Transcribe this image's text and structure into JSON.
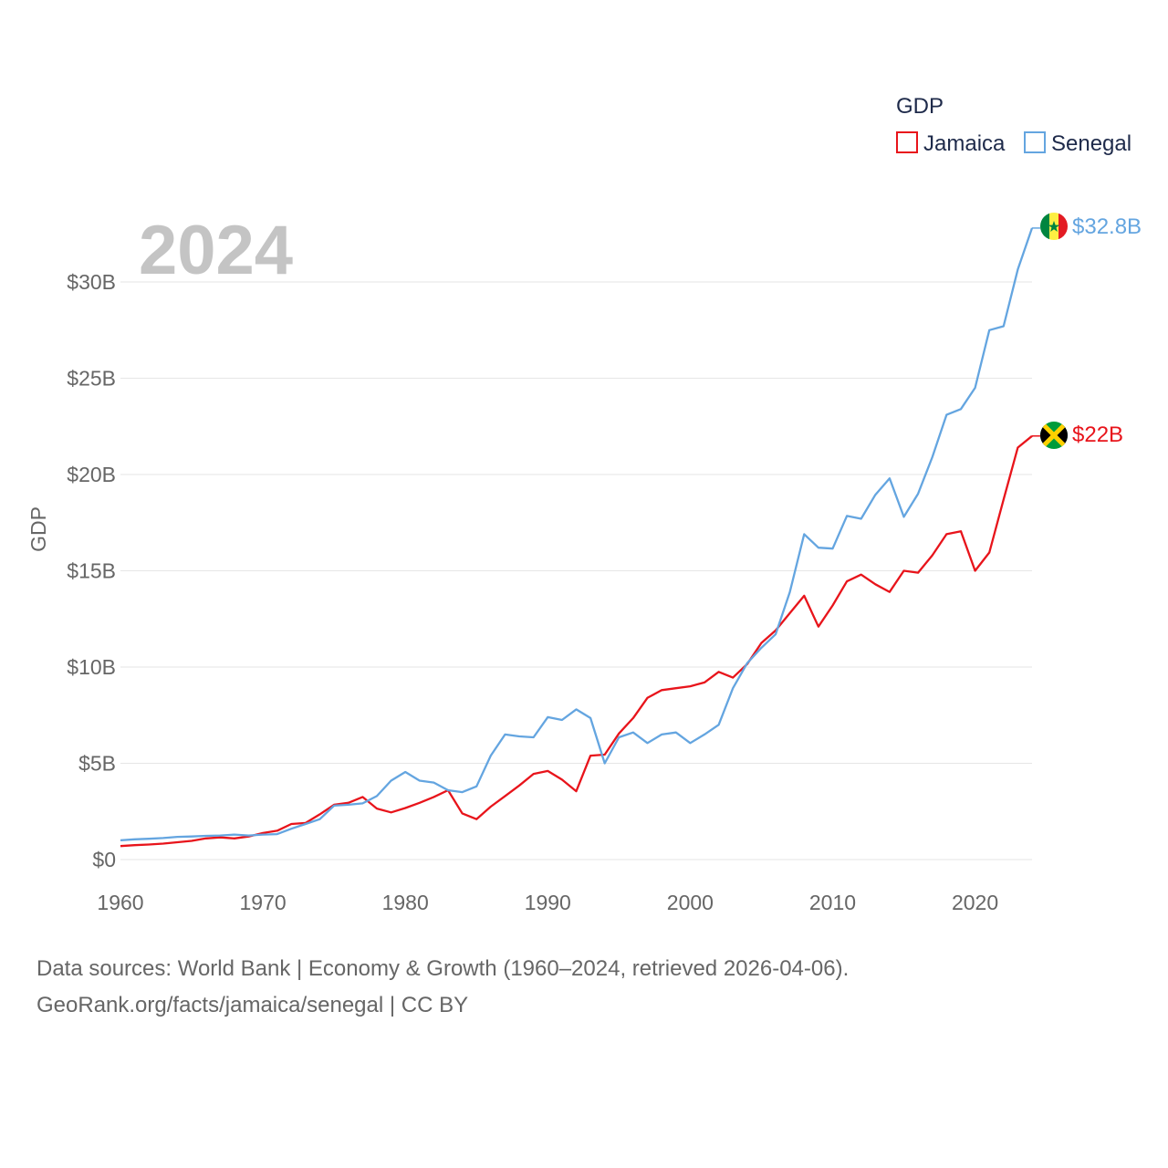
{
  "chart_data": {
    "type": "line",
    "year_label": "2024",
    "ylabel": "GDP",
    "legend_title": "GDP",
    "legend_position": "top-right",
    "xlim": [
      1960,
      2024
    ],
    "ylim": [
      0,
      33
    ],
    "x_ticks": [
      1960,
      1970,
      1980,
      1990,
      2000,
      2010,
      2020
    ],
    "x_tick_labels": [
      "1960",
      "1970",
      "1980",
      "1990",
      "2000",
      "2010",
      "2020"
    ],
    "y_ticks": [
      0,
      5,
      10,
      15,
      20,
      25,
      30
    ],
    "y_tick_labels": [
      "$0",
      "$5B",
      "$10B",
      "$15B",
      "$20B",
      "$25B",
      "$30B"
    ],
    "grid": true,
    "series": [
      {
        "name": "Jamaica",
        "color": "#e8141b",
        "end_label": "$22B",
        "flag_icon": "jamaica-flag-icon",
        "x": [
          1960,
          1961,
          1962,
          1963,
          1964,
          1965,
          1966,
          1967,
          1968,
          1969,
          1970,
          1971,
          1972,
          1973,
          1974,
          1975,
          1976,
          1977,
          1978,
          1979,
          1980,
          1981,
          1982,
          1983,
          1984,
          1985,
          1986,
          1987,
          1988,
          1989,
          1990,
          1991,
          1992,
          1993,
          1994,
          1995,
          1996,
          1997,
          1998,
          1999,
          2000,
          2001,
          2002,
          2003,
          2004,
          2005,
          2006,
          2007,
          2008,
          2009,
          2010,
          2011,
          2012,
          2013,
          2014,
          2015,
          2016,
          2017,
          2018,
          2019,
          2020,
          2021,
          2022,
          2023,
          2024
        ],
        "values": [
          0.7,
          0.75,
          0.78,
          0.83,
          0.9,
          0.97,
          1.1,
          1.15,
          1.1,
          1.2,
          1.38,
          1.5,
          1.85,
          1.9,
          2.35,
          2.85,
          2.95,
          3.25,
          2.65,
          2.45,
          2.68,
          2.95,
          3.25,
          3.6,
          2.4,
          2.1,
          2.75,
          3.3,
          3.85,
          4.45,
          4.6,
          4.15,
          3.55,
          5.4,
          5.45,
          6.55,
          7.35,
          8.4,
          8.8,
          8.9,
          9.0,
          9.2,
          9.75,
          9.45,
          10.15,
          11.25,
          11.9,
          12.8,
          13.7,
          12.1,
          13.2,
          14.45,
          14.8,
          14.3,
          13.9,
          15.0,
          14.9,
          15.8,
          16.9,
          17.05,
          15.0,
          15.95,
          18.7,
          21.4,
          22.0
        ]
      },
      {
        "name": "Senegal",
        "color": "#64a5e0",
        "end_label": "$32.8B",
        "flag_icon": "senegal-flag-icon",
        "x": [
          1960,
          1961,
          1962,
          1963,
          1964,
          1965,
          1966,
          1967,
          1968,
          1969,
          1970,
          1971,
          1972,
          1973,
          1974,
          1975,
          1976,
          1977,
          1978,
          1979,
          1980,
          1981,
          1982,
          1983,
          1984,
          1985,
          1986,
          1987,
          1988,
          1989,
          1990,
          1991,
          1992,
          1993,
          1994,
          1995,
          1996,
          1997,
          1998,
          1999,
          2000,
          2001,
          2002,
          2003,
          2004,
          2005,
          2006,
          2007,
          2008,
          2009,
          2010,
          2011,
          2012,
          2013,
          2014,
          2015,
          2016,
          2017,
          2018,
          2019,
          2020,
          2021,
          2022,
          2023,
          2024
        ],
        "values": [
          1.0,
          1.05,
          1.08,
          1.12,
          1.18,
          1.2,
          1.23,
          1.25,
          1.3,
          1.25,
          1.3,
          1.32,
          1.6,
          1.85,
          2.1,
          2.8,
          2.85,
          2.92,
          3.3,
          4.1,
          4.55,
          4.1,
          4.0,
          3.6,
          3.5,
          3.8,
          5.4,
          6.5,
          6.4,
          6.35,
          7.4,
          7.25,
          7.8,
          7.35,
          5.0,
          6.35,
          6.6,
          6.05,
          6.5,
          6.6,
          6.05,
          6.5,
          7.0,
          8.9,
          10.2,
          11.0,
          11.7,
          13.9,
          16.9,
          16.2,
          16.15,
          17.85,
          17.7,
          18.95,
          19.8,
          17.8,
          19.0,
          20.9,
          23.1,
          23.4,
          24.5,
          27.5,
          27.7,
          30.65,
          32.8
        ]
      }
    ]
  },
  "footer": {
    "line1": "Data sources: World Bank | Economy & Growth (1960–2024, retrieved 2026-04-06).",
    "line2": "GeoRank.org/facts/jamaica/senegal | CC BY"
  }
}
